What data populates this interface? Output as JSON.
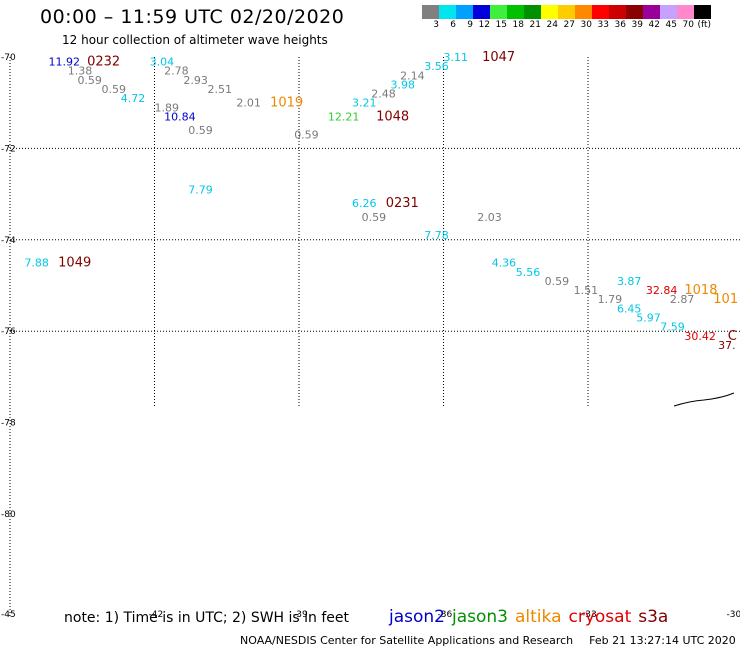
{
  "title": "00:00 – 11:59 UTC 02/20/2020",
  "subtitle": "12 hour collection of altimeter wave heights",
  "legend": {
    "unit": "(ft)",
    "bins": [
      {
        "label": "3",
        "color": "#808080"
      },
      {
        "label": "6",
        "color": "#00e5ee"
      },
      {
        "label": "9",
        "color": "#00a0ff"
      },
      {
        "label": "12",
        "color": "#0000dd"
      },
      {
        "label": "15",
        "color": "#40ee40"
      },
      {
        "label": "18",
        "color": "#00c000"
      },
      {
        "label": "21",
        "color": "#009000"
      },
      {
        "label": "24",
        "color": "#ffff00"
      },
      {
        "label": "27",
        "color": "#ffcc00"
      },
      {
        "label": "30",
        "color": "#ff8800"
      },
      {
        "label": "33",
        "color": "#ff0000"
      },
      {
        "label": "36",
        "color": "#cc0000"
      },
      {
        "label": "39",
        "color": "#8b0000"
      },
      {
        "label": "42",
        "color": "#990099"
      },
      {
        "label": "45",
        "color": "#c8a0ff"
      },
      {
        "label": "70",
        "color": "#ff88cc"
      },
      {
        "label": "",
        "color": "#000000"
      }
    ]
  },
  "colors": {
    "gray": "#7a7a7a",
    "cyan": "#00c8e6",
    "blue": "#0000cc",
    "green": "#33cc33",
    "orange": "#ee8800",
    "red": "#dd0000",
    "darkred": "#800000"
  },
  "lat_labels": [
    "-70",
    "-72",
    "-74",
    "-76",
    "-78",
    "-80"
  ],
  "lon_labels": [
    "-45",
    "-42",
    "-39",
    "-36",
    "-33",
    "-30"
  ],
  "observations": [
    {
      "text": "11.92",
      "color": "blue",
      "lon": -44.2,
      "lat": -70.1
    },
    {
      "text": "0232",
      "color": "darkred",
      "lon": -43.4,
      "lat": -70.1
    },
    {
      "text": "3.04",
      "color": "cyan",
      "lon": -42.1,
      "lat": -70.1
    },
    {
      "text": "1.38",
      "color": "gray",
      "lon": -43.8,
      "lat": -70.3
    },
    {
      "text": "2.78",
      "color": "gray",
      "lon": -41.8,
      "lat": -70.3
    },
    {
      "text": "0.59",
      "color": "gray",
      "lon": -43.6,
      "lat": -70.5
    },
    {
      "text": "2.93",
      "color": "gray",
      "lon": -41.4,
      "lat": -70.5
    },
    {
      "text": "0.59",
      "color": "gray",
      "lon": -43.1,
      "lat": -70.7
    },
    {
      "text": "2.51",
      "color": "gray",
      "lon": -40.9,
      "lat": -70.7
    },
    {
      "text": "4.72",
      "color": "cyan",
      "lon": -42.7,
      "lat": -70.9
    },
    {
      "text": "2.01",
      "color": "gray",
      "lon": -40.3,
      "lat": -71.0
    },
    {
      "text": "1019",
      "color": "orange",
      "lon": -39.6,
      "lat": -71.0
    },
    {
      "text": "1.89",
      "color": "gray",
      "lon": -42.0,
      "lat": -71.1
    },
    {
      "text": "10.84",
      "color": "blue",
      "lon": -41.8,
      "lat": -71.3
    },
    {
      "text": "0.59",
      "color": "gray",
      "lon": -41.3,
      "lat": -71.6
    },
    {
      "text": "3.11",
      "color": "cyan",
      "lon": -36.0,
      "lat": -70.0
    },
    {
      "text": "1047",
      "color": "darkred",
      "lon": -35.2,
      "lat": -70.0
    },
    {
      "text": "3.56",
      "color": "cyan",
      "lon": -36.4,
      "lat": -70.2
    },
    {
      "text": "2.14",
      "color": "gray",
      "lon": -36.9,
      "lat": -70.4
    },
    {
      "text": "3.98",
      "color": "cyan",
      "lon": -37.1,
      "lat": -70.6
    },
    {
      "text": "2.48",
      "color": "gray",
      "lon": -37.5,
      "lat": -70.8
    },
    {
      "text": "3.21",
      "color": "cyan",
      "lon": -37.9,
      "lat": -71.0
    },
    {
      "text": "12.21",
      "color": "green",
      "lon": -38.4,
      "lat": -71.3
    },
    {
      "text": "1048",
      "color": "darkred",
      "lon": -37.4,
      "lat": -71.3
    },
    {
      "text": "0.59",
      "color": "gray",
      "lon": -39.1,
      "lat": -71.7
    },
    {
      "text": "7.79",
      "color": "cyan",
      "lon": -41.3,
      "lat": -72.9
    },
    {
      "text": "6.26",
      "color": "cyan",
      "lon": -37.9,
      "lat": -73.2
    },
    {
      "text": "0231",
      "color": "darkred",
      "lon": -37.2,
      "lat": -73.2
    },
    {
      "text": "0.59",
      "color": "gray",
      "lon": -37.7,
      "lat": -73.5
    },
    {
      "text": "2.03",
      "color": "gray",
      "lon": -35.3,
      "lat": -73.5
    },
    {
      "text": "7.78",
      "color": "cyan",
      "lon": -36.4,
      "lat": -73.9
    },
    {
      "text": "7.88",
      "color": "cyan",
      "lon": -44.7,
      "lat": -74.5
    },
    {
      "text": "1049",
      "color": "darkred",
      "lon": -44.0,
      "lat": -74.5
    },
    {
      "text": "4.36",
      "color": "cyan",
      "lon": -35.0,
      "lat": -74.5
    },
    {
      "text": "5.56",
      "color": "cyan",
      "lon": -34.5,
      "lat": -74.7
    },
    {
      "text": "0.59",
      "color": "gray",
      "lon": -33.9,
      "lat": -74.9
    },
    {
      "text": "1.51",
      "color": "gray",
      "lon": -33.3,
      "lat": -75.1
    },
    {
      "text": "3.87",
      "color": "cyan",
      "lon": -32.4,
      "lat": -74.9
    },
    {
      "text": "32.84",
      "color": "red",
      "lon": -31.8,
      "lat": -75.1
    },
    {
      "text": "1018",
      "color": "orange",
      "lon": -31.0,
      "lat": -75.1
    },
    {
      "text": "1.79",
      "color": "gray",
      "lon": -32.8,
      "lat": -75.3
    },
    {
      "text": "2.87",
      "color": "gray",
      "lon": -31.3,
      "lat": -75.3
    },
    {
      "text": "101",
      "color": "orange",
      "lon": -30.4,
      "lat": -75.3
    },
    {
      "text": "6.45",
      "color": "cyan",
      "lon": -32.4,
      "lat": -75.5
    },
    {
      "text": "5.97",
      "color": "cyan",
      "lon": -32.0,
      "lat": -75.7
    },
    {
      "text": "7.59",
      "color": "cyan",
      "lon": -31.5,
      "lat": -75.9
    },
    {
      "text": "30.42",
      "color": "red",
      "lon": -31.0,
      "lat": -76.1
    },
    {
      "text": "C",
      "color": "darkred",
      "lon": -30.1,
      "lat": -76.1
    },
    {
      "text": "37.",
      "color": "darkred",
      "lon": -30.3,
      "lat": -76.3
    }
  ],
  "note": "note:  1) Time is in UTC;  2) SWH is in feet",
  "satellites": [
    {
      "name": "jason2",
      "color": "#0000cc"
    },
    {
      "name": "jason3",
      "color": "#009000"
    },
    {
      "name": "altika",
      "color": "#ee8800"
    },
    {
      "name": "cryosat",
      "color": "#dd0000"
    },
    {
      "name": "s3a",
      "color": "#800000"
    }
  ],
  "footer": {
    "credit": "NOAA/NESDIS Center for Satellite Applications and Research",
    "timestamp": "Feb 21 13:27:14 UTC 2020"
  }
}
